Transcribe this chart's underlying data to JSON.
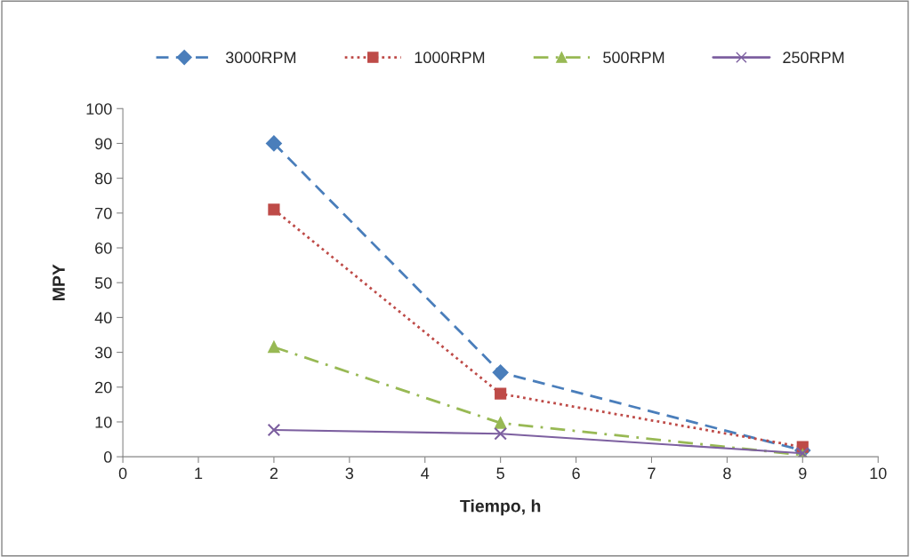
{
  "chart_data": {
    "type": "line",
    "xlabel": "Tiempo, h",
    "ylabel": "MPY",
    "x": [
      2,
      5,
      9
    ],
    "xlim": [
      0,
      10
    ],
    "xticks": [
      0,
      1,
      2,
      3,
      4,
      5,
      6,
      7,
      8,
      9,
      10
    ],
    "ylim": [
      0,
      100
    ],
    "yticks": [
      0,
      10,
      20,
      30,
      40,
      50,
      60,
      70,
      80,
      90,
      100
    ],
    "grid": false,
    "legend": "top",
    "series": [
      {
        "name": "3000RPM",
        "color": "#4a7ebb",
        "values": [
          90,
          24.2,
          1.8
        ],
        "marker": "diamond",
        "line_style": "dashed"
      },
      {
        "name": "1000RPM",
        "color": "#be4b48",
        "values": [
          71,
          18.1,
          2.8
        ],
        "marker": "square",
        "line_style": "dotted"
      },
      {
        "name": "500RPM",
        "color": "#98b954",
        "values": [
          31.5,
          9.7,
          0.5
        ],
        "marker": "triangle",
        "line_style": "dashdot"
      },
      {
        "name": "250RPM",
        "color": "#7d60a0",
        "values": [
          7.7,
          6.6,
          1
        ],
        "marker": "cross",
        "line_style": "solid"
      }
    ]
  }
}
